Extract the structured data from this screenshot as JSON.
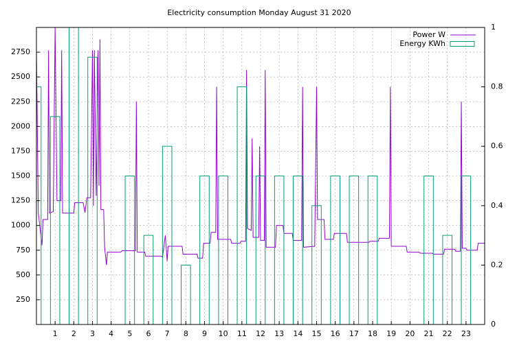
{
  "chart_data": {
    "type": "line",
    "title": "Electricity consumption Monday August 31 2020",
    "xlim": [
      0,
      24
    ],
    "xticks": [
      1,
      2,
      3,
      4,
      5,
      6,
      7,
      8,
      9,
      10,
      11,
      12,
      13,
      14,
      15,
      16,
      17,
      18,
      19,
      20,
      21,
      22,
      23
    ],
    "ylim": [
      0,
      3000
    ],
    "yticks": [
      250,
      500,
      750,
      1000,
      1250,
      1500,
      1750,
      2000,
      2250,
      2500,
      2750
    ],
    "y2lim": [
      0,
      1
    ],
    "y2ticks": [
      0,
      0.2,
      0.4,
      0.6,
      0.8,
      1
    ],
    "grid": true,
    "legend": "top-right",
    "series": [
      {
        "name": "Power W",
        "color": "#9400d3",
        "type": "line",
        "x": [
          0,
          0.1,
          0.3,
          0.35,
          0.6,
          0.65,
          0.7,
          0.9,
          1.0,
          1.1,
          1.3,
          1.35,
          1.4,
          2.0,
          2.05,
          2.5,
          2.6,
          2.7,
          2.9,
          3.0,
          3.05,
          3.1,
          3.2,
          3.3,
          3.35,
          3.4,
          3.45,
          3.6,
          3.65,
          3.75,
          3.8,
          4.5,
          4.6,
          5.3,
          5.35,
          5.4,
          5.8,
          5.85,
          6.7,
          6.75,
          6.9,
          7.0,
          7.05,
          7.8,
          7.85,
          8.6,
          8.65,
          8.9,
          8.95,
          9.3,
          9.35,
          9.6,
          9.65,
          9.7,
          10.4,
          10.45,
          10.9,
          10.95,
          11.2,
          11.25,
          11.3,
          11.5,
          11.55,
          11.6,
          11.9,
          11.95,
          12.0,
          12.2,
          12.25,
          12.3,
          12.8,
          12.85,
          13.2,
          13.25,
          13.7,
          13.75,
          14.2,
          14.25,
          14.3,
          14.9,
          15.0,
          15.05,
          15.4,
          15.45,
          15.9,
          15.95,
          16.6,
          16.65,
          17.8,
          17.85,
          18.3,
          18.35,
          18.9,
          18.95,
          19.0,
          19.8,
          19.85,
          20.5,
          20.55,
          21.2,
          21.25,
          21.8,
          21.85,
          22.4,
          22.45,
          22.7,
          22.75,
          22.8,
          23.0,
          23.05,
          23.6,
          23.65,
          24
        ],
        "values": [
          2770,
          1125,
          800,
          1060,
          1060,
          2770,
          1125,
          1140,
          3000,
          1250,
          1250,
          2770,
          1125,
          1125,
          1230,
          1230,
          1130,
          1280,
          1280,
          2770,
          1200,
          2770,
          1300,
          2770,
          1400,
          2880,
          1160,
          1160,
          780,
          600,
          730,
          730,
          745,
          745,
          2250,
          730,
          730,
          690,
          690,
          680,
          900,
          640,
          790,
          790,
          710,
          710,
          670,
          670,
          820,
          820,
          930,
          930,
          2400,
          860,
          860,
          820,
          820,
          840,
          840,
          2570,
          970,
          950,
          1880,
          880,
          880,
          1800,
          850,
          850,
          2570,
          780,
          780,
          1000,
          1000,
          920,
          920,
          850,
          850,
          2400,
          780,
          790,
          2400,
          1060,
          1060,
          860,
          860,
          920,
          920,
          830,
          830,
          840,
          840,
          870,
          870,
          2400,
          790,
          790,
          730,
          730,
          720,
          720,
          710,
          710,
          760,
          760,
          740,
          740,
          2250,
          770,
          770,
          750,
          750,
          820,
          820
        ]
      },
      {
        "name": "Energy KWh",
        "color": "#009e73",
        "type": "bar",
        "axis": "y2",
        "x": [
          0,
          1,
          2,
          3,
          4,
          5,
          6,
          7,
          8,
          9,
          10,
          11,
          12,
          13,
          14,
          15,
          16,
          17,
          18,
          19,
          20,
          21,
          22,
          23
        ],
        "values": [
          0.8,
          0.7,
          1,
          0.9,
          0,
          0.5,
          0.3,
          0.6,
          0.2,
          0.5,
          0.5,
          0.8,
          0.5,
          0.5,
          0.5,
          0.4,
          0.5,
          0.5,
          0.5,
          0,
          0,
          0.5,
          0.3,
          0.5
        ]
      }
    ]
  }
}
